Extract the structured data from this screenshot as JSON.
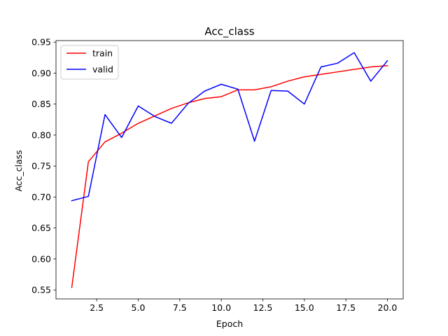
{
  "chart_data": {
    "type": "line",
    "title": "Acc_class",
    "xlabel": "Epoch",
    "ylabel": "Acc_class",
    "xlim": [
      0.05,
      20.95
    ],
    "ylim": [
      0.5355,
      0.9525
    ],
    "x_ticks": [
      2.5,
      5.0,
      7.5,
      10.0,
      12.5,
      15.0,
      17.5,
      20.0
    ],
    "x_tick_labels": [
      "2.5",
      "5.0",
      "7.5",
      "10.0",
      "12.5",
      "15.0",
      "17.5",
      "20.0"
    ],
    "y_ticks": [
      0.55,
      0.6,
      0.65,
      0.7,
      0.75,
      0.8,
      0.85,
      0.9,
      0.95
    ],
    "y_tick_labels": [
      "0.55",
      "0.60",
      "0.65",
      "0.70",
      "0.75",
      "0.80",
      "0.85",
      "0.90",
      "0.95"
    ],
    "grid": false,
    "legend_position": "top-left",
    "x": [
      1,
      2,
      3,
      4,
      5,
      6,
      7,
      8,
      9,
      10,
      11,
      12,
      13,
      14,
      15,
      16,
      17,
      18,
      19,
      20
    ],
    "series": [
      {
        "name": "train",
        "color": "#ff0000",
        "values": [
          0.554,
          0.757,
          0.789,
          0.803,
          0.819,
          0.831,
          0.843,
          0.852,
          0.859,
          0.862,
          0.873,
          0.873,
          0.878,
          0.887,
          0.894,
          0.898,
          0.902,
          0.906,
          0.91,
          0.912
        ]
      },
      {
        "name": "valid",
        "color": "#0000ff",
        "values": [
          0.694,
          0.701,
          0.833,
          0.796,
          0.847,
          0.83,
          0.819,
          0.851,
          0.871,
          0.882,
          0.874,
          0.79,
          0.872,
          0.871,
          0.85,
          0.91,
          0.916,
          0.933,
          0.887,
          0.92
        ]
      }
    ]
  }
}
